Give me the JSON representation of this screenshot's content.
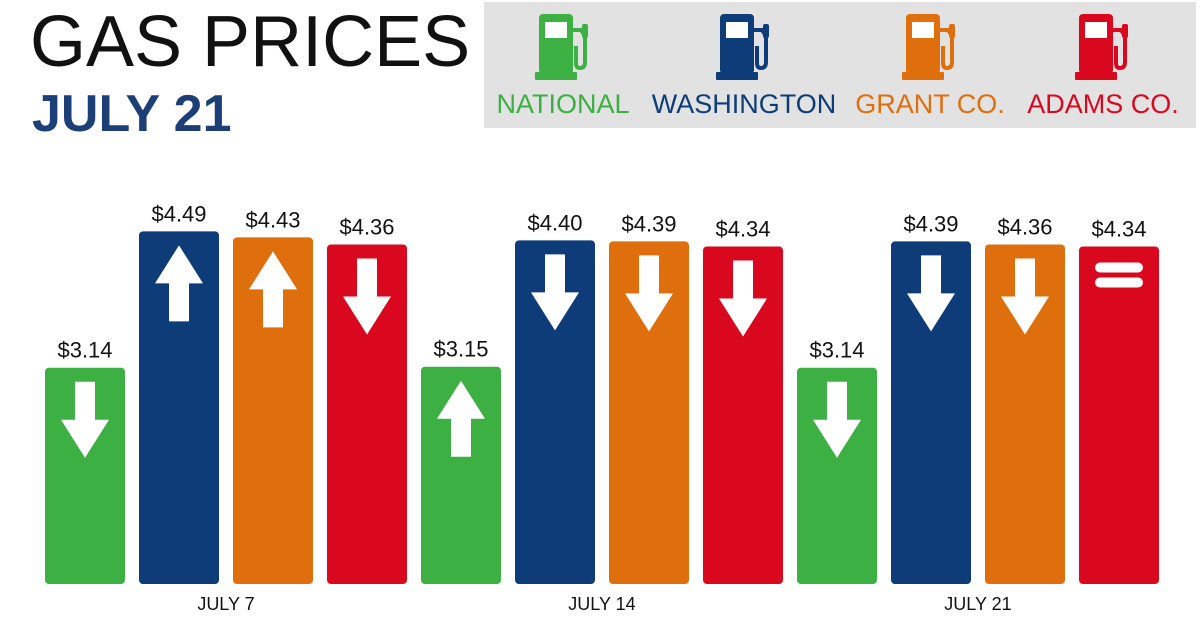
{
  "header": {
    "title": "GAS PRICES",
    "subtitle": "JULY 21"
  },
  "legend": [
    {
      "label": "NATIONAL",
      "color": "#3cb043",
      "icon": "gas-pump-icon"
    },
    {
      "label": "WASHINGTON",
      "color": "#0d3c78",
      "icon": "gas-pump-icon"
    },
    {
      "label": "GRANT CO.",
      "color": "#df6f0c",
      "icon": "gas-pump-icon"
    },
    {
      "label": "ADAMS CO.",
      "color": "#d9081f",
      "icon": "gas-pump-icon"
    }
  ],
  "chart_data": {
    "type": "bar",
    "categories": [
      "JULY 7",
      "JULY 14",
      "JULY 21"
    ],
    "series": [
      {
        "name": "NATIONAL",
        "color": "#3cb043",
        "values": [
          3.14,
          3.15,
          3.14
        ],
        "labels": [
          "$3.14",
          "$3.15",
          "$3.14"
        ],
        "trend": [
          "down",
          "up",
          "down"
        ]
      },
      {
        "name": "WASHINGTON",
        "color": "#0d3c78",
        "values": [
          4.49,
          4.4,
          4.39
        ],
        "labels": [
          "$4.49",
          "$4.40",
          "$4.39"
        ],
        "trend": [
          "up",
          "down",
          "down"
        ]
      },
      {
        "name": "GRANT CO.",
        "color": "#df6f0c",
        "values": [
          4.43,
          4.39,
          4.36
        ],
        "labels": [
          "$4.43",
          "$4.39",
          "$4.36"
        ],
        "trend": [
          "up",
          "down",
          "down"
        ]
      },
      {
        "name": "ADAMS CO.",
        "color": "#d9081f",
        "values": [
          4.36,
          4.34,
          4.34
        ],
        "labels": [
          "$4.36",
          "$4.34",
          "$4.34"
        ],
        "trend": [
          "down",
          "down",
          "same"
        ]
      }
    ],
    "ylim": [
      1.0,
      4.8
    ],
    "grid": false,
    "legend_position": "top-right",
    "data_labels": true
  }
}
